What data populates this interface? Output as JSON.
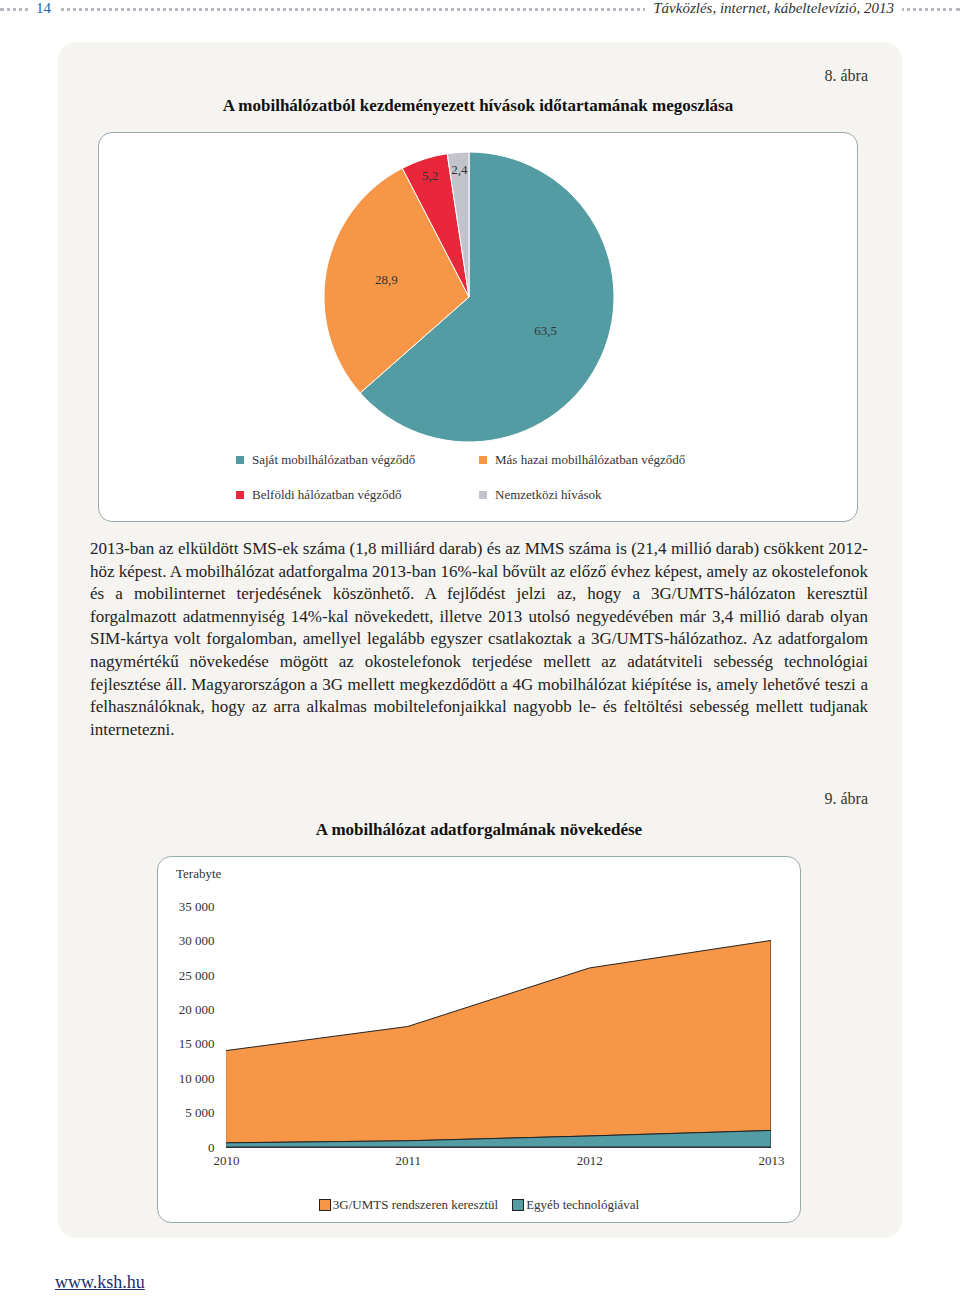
{
  "header": {
    "page_number": "14",
    "title": "Távközlés, internet, kábeltelevízió, 2013"
  },
  "chart_data": [
    {
      "type": "pie",
      "title": "A mobilhálózatból kezdeményezett hívások időtartamának megoszlása",
      "annotations": [
        "8. ábra"
      ],
      "categories": [
        "Saját mobilhálózatban végződő",
        "Más hazai mobilhálózatban végződő",
        "Belföldi hálózatban végződő",
        "Nemzetközi hívások"
      ],
      "values": [
        63.5,
        28.9,
        5.2,
        2.4
      ],
      "value_labels": [
        "63,5",
        "28,9",
        "5,2",
        "2,4"
      ],
      "colors": [
        "#549ca3",
        "#f79646",
        "#e8273b",
        "#c3c3cb"
      ],
      "data_labels": true,
      "legend": "bottom"
    },
    {
      "type": "area",
      "title": "A mobilhálózat adatforgalmának növekedése",
      "annotations": [
        "9. ábra"
      ],
      "y_label": "Terabyte",
      "x": [
        2010,
        2011,
        2012,
        2013
      ],
      "series": [
        {
          "name": "3G/UMTS rendszeren keresztül",
          "color": "#f79646",
          "values": [
            13400,
            16600,
            24400,
            27600
          ]
        },
        {
          "name": "Egyéb technológiával",
          "color": "#549ca3",
          "values": [
            600,
            900,
            1600,
            2400
          ]
        }
      ],
      "stacked": true,
      "xlim": [
        2010,
        2013
      ],
      "xticks": [
        2010,
        2011,
        2012,
        2013
      ],
      "ylim": [
        0,
        35000
      ],
      "yticks": [
        0,
        {
          "value": 5000,
          "label": "5 000"
        },
        {
          "value": 10000,
          "label": "10 000"
        },
        {
          "value": 15000,
          "label": "15 000"
        },
        {
          "value": 20000,
          "label": "20 000"
        },
        {
          "value": 25000,
          "label": "25 000"
        },
        {
          "value": 30000,
          "label": "30 000"
        },
        {
          "value": 35000,
          "label": "35 000"
        }
      ],
      "legend": "bottom"
    }
  ],
  "text": "2013-ban az elküldött SMS-ek száma (1,8 milliárd darab) és az MMS száma is (21,4 millió darab) csökkent 2012-höz képest. A mobilhálózat adatforgalma 2013-ban 16%-kal bővült az előző évhez képest, amely az okostelefonok és a mobilinternet terjedésének köszönhető. A fejlődést jelzi az, hogy a 3G/UMTS-hálózaton keresztül forgalmazott adatmennyiség 14%-kal növekedett, illetve 2013 utolsó negyedévében már 3,4 millió darab olyan SIM-kártya volt forgalomban, amellyel legalább egyszer csatlakoztak a 3G/UMTS-hálózathoz. Az adatforgalom nagymértékű növekedése mögött az okostelefonok terjedése mellett az adatátviteli sebesség technológiai fejlesztése áll. Magyarországon a 3G mellett megkezdődött a 4G mobilhálózat kiépítése is, amely lehetővé teszi a felhasználóknak, hogy az arra alkalmas mobiltelefonjaikkal nagyobb le- és feltöltési sebesség mellett tudjanak internetezni.",
  "footer": "www.ksh.hu"
}
